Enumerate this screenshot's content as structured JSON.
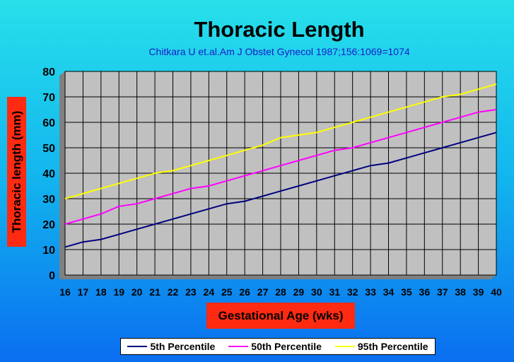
{
  "chart_data": {
    "type": "line",
    "title": "Thoracic Length",
    "subtitle": "Chitkara U et.al.Am J Obstet Gynecol 1987;156:1069=1074",
    "xlabel": "Gestational Age (wks)",
    "ylabel": "Thoracic length (mm)",
    "x": [
      16,
      17,
      18,
      19,
      20,
      21,
      22,
      23,
      24,
      25,
      26,
      27,
      28,
      29,
      30,
      31,
      32,
      33,
      34,
      35,
      36,
      37,
      38,
      39,
      40
    ],
    "xlim": [
      16,
      40
    ],
    "ylim": [
      0,
      80
    ],
    "yticks": [
      0,
      10,
      20,
      30,
      40,
      50,
      60,
      70,
      80
    ],
    "grid": true,
    "plot_background": "#c0c0c0",
    "legend_position": "bottom",
    "series": [
      {
        "name": "5th Percentile",
        "color": "#000080",
        "values": [
          11,
          13,
          14,
          16,
          18,
          20,
          22,
          24,
          26,
          28,
          29,
          31,
          33,
          35,
          37,
          39,
          41,
          43,
          44,
          46,
          48,
          50,
          52,
          54,
          56
        ]
      },
      {
        "name": "50th Percentile",
        "color": "#ff00ff",
        "values": [
          20,
          22,
          24,
          27,
          28,
          30,
          32,
          34,
          35,
          37,
          39,
          41,
          43,
          45,
          47,
          49,
          50,
          52,
          54,
          56,
          58,
          60,
          62,
          64,
          65
        ]
      },
      {
        "name": "95th Percentile",
        "color": "#ffff00",
        "values": [
          30,
          32,
          34,
          36,
          38,
          40,
          41,
          43,
          45,
          47,
          49,
          51,
          54,
          55,
          56,
          58,
          60,
          62,
          64,
          66,
          68,
          70,
          71,
          73,
          75
        ]
      }
    ]
  }
}
